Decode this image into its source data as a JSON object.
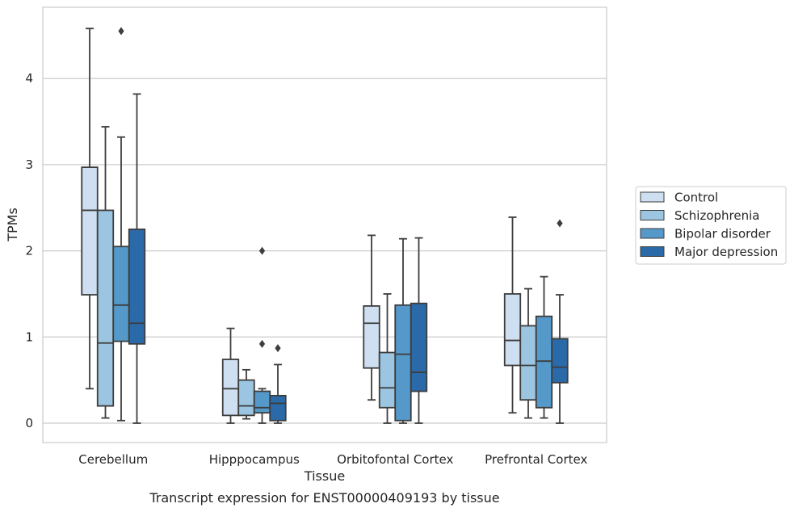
{
  "chart_data": {
    "type": "boxplot",
    "title": "",
    "xlabel": "Tissue",
    "ylabel": "TPMs",
    "caption": "Transcript expression for ENST00000409193 by tissue",
    "ylim": [
      -0.22,
      4.82
    ],
    "yticks": [
      0,
      1,
      2,
      3,
      4
    ],
    "grid": "horizontal",
    "legend_position": "right",
    "categories": [
      "Cerebellum",
      "Hipppocampus",
      "Orbitofontal Cortex",
      "Prefrontal Cortex"
    ],
    "series": [
      {
        "name": "Control",
        "color": "#cddff0",
        "boxes": [
          {
            "whislo": 0.4,
            "q1": 1.49,
            "med": 2.47,
            "q3": 2.97,
            "whishi": 4.58,
            "fliers": []
          },
          {
            "whislo": 0.0,
            "q1": 0.09,
            "med": 0.4,
            "q3": 0.74,
            "whishi": 1.1,
            "fliers": []
          },
          {
            "whislo": 0.27,
            "q1": 0.64,
            "med": 1.16,
            "q3": 1.36,
            "whishi": 2.18,
            "fliers": []
          },
          {
            "whislo": 0.12,
            "q1": 0.67,
            "med": 0.96,
            "q3": 1.5,
            "whishi": 2.39,
            "fliers": []
          }
        ]
      },
      {
        "name": "Schizophrenia",
        "color": "#9bc5e0",
        "boxes": [
          {
            "whislo": 0.06,
            "q1": 0.2,
            "med": 0.93,
            "q3": 2.47,
            "whishi": 3.44,
            "fliers": []
          },
          {
            "whislo": 0.05,
            "q1": 0.09,
            "med": 0.2,
            "q3": 0.5,
            "whishi": 0.62,
            "fliers": []
          },
          {
            "whislo": 0.0,
            "q1": 0.18,
            "med": 0.41,
            "q3": 0.82,
            "whishi": 1.5,
            "fliers": []
          },
          {
            "whislo": 0.06,
            "q1": 0.27,
            "med": 0.67,
            "q3": 1.13,
            "whishi": 1.56,
            "fliers": []
          }
        ]
      },
      {
        "name": "Bipolar disorder",
        "color": "#5499c9",
        "boxes": [
          {
            "whislo": 0.03,
            "q1": 0.95,
            "med": 1.37,
            "q3": 2.05,
            "whishi": 3.32,
            "fliers": [
              4.55
            ]
          },
          {
            "whislo": 0.0,
            "q1": 0.12,
            "med": 0.18,
            "q3": 0.37,
            "whishi": 0.4,
            "fliers": [
              2.0,
              0.92
            ]
          },
          {
            "whislo": 0.0,
            "q1": 0.03,
            "med": 0.8,
            "q3": 1.37,
            "whishi": 2.14,
            "fliers": []
          },
          {
            "whislo": 0.06,
            "q1": 0.18,
            "med": 0.72,
            "q3": 1.24,
            "whishi": 1.7,
            "fliers": []
          }
        ]
      },
      {
        "name": "Major depression",
        "color": "#2b6aa8",
        "boxes": [
          {
            "whislo": 0.0,
            "q1": 0.92,
            "med": 1.16,
            "q3": 2.25,
            "whishi": 3.82,
            "fliers": []
          },
          {
            "whislo": 0.0,
            "q1": 0.03,
            "med": 0.23,
            "q3": 0.32,
            "whishi": 0.68,
            "fliers": [
              0.87
            ]
          },
          {
            "whislo": 0.0,
            "q1": 0.37,
            "med": 0.59,
            "q3": 1.39,
            "whishi": 2.15,
            "fliers": []
          },
          {
            "whislo": 0.0,
            "q1": 0.47,
            "med": 0.65,
            "q3": 0.98,
            "whishi": 1.49,
            "fliers": [
              2.32
            ]
          }
        ]
      }
    ]
  }
}
